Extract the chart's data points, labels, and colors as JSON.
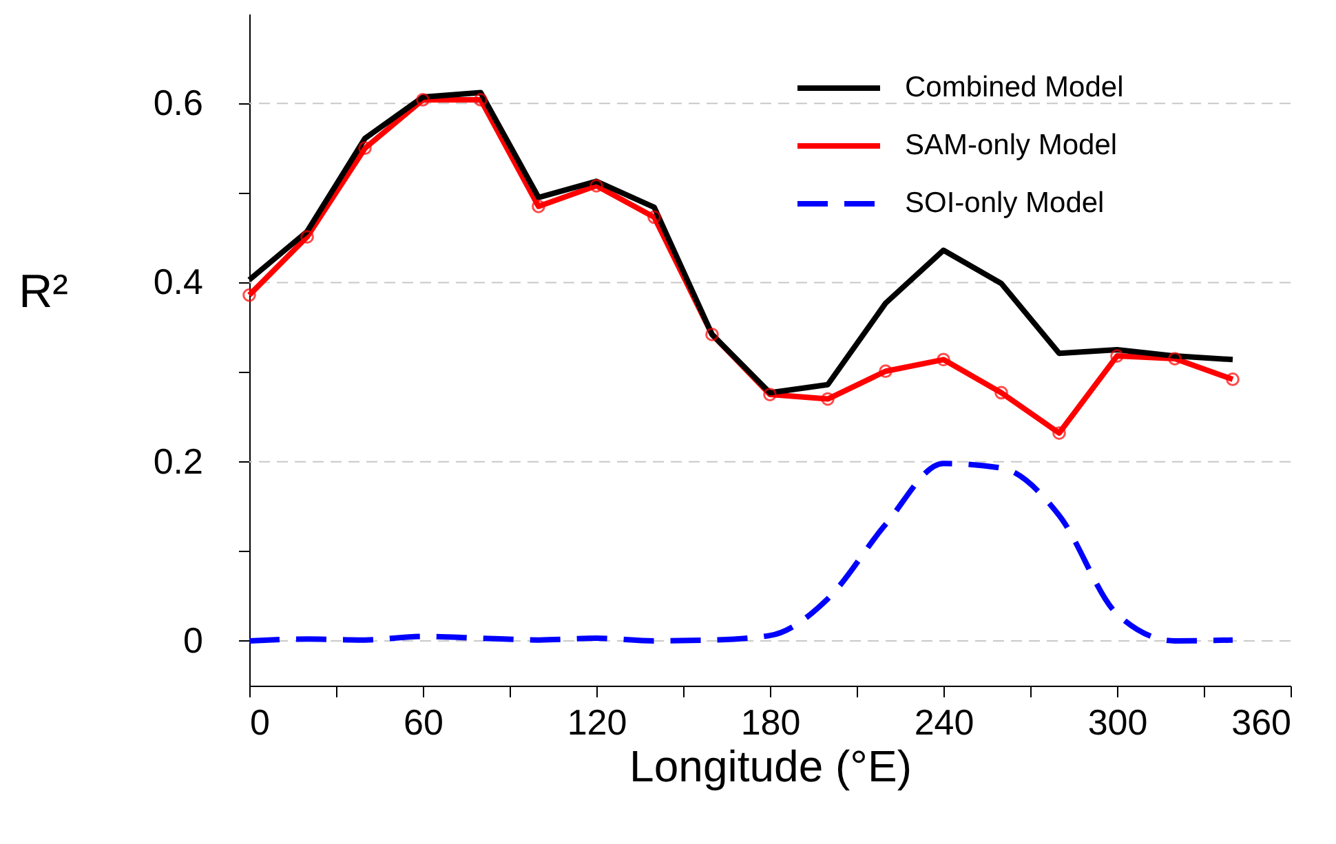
{
  "chart_data": {
    "type": "line",
    "xlabel": "Longitude (°E)",
    "ylabel": "R²",
    "xlim": [
      0,
      360
    ],
    "ylim": [
      -0.05,
      0.7
    ],
    "xticks": [
      0,
      {
        "value": 30,
        "label": null
      },
      60,
      {
        "value": 90,
        "label": null
      },
      120,
      {
        "value": 150,
        "label": null
      },
      180,
      {
        "value": 210,
        "label": null
      },
      240,
      {
        "value": 270,
        "label": null
      },
      300,
      {
        "value": 330,
        "label": null
      },
      360
    ],
    "yticks": [
      0,
      {
        "value": 0.1,
        "label": null
      },
      0.2,
      {
        "value": 0.3,
        "label": null
      },
      0.4,
      {
        "value": 0.5,
        "label": null
      },
      0.6
    ],
    "grid": "y",
    "legend": "top right",
    "x": [
      0,
      20,
      40,
      60,
      80,
      100,
      120,
      140,
      160,
      180,
      200,
      220,
      240,
      260,
      280,
      300,
      320,
      340
    ],
    "series": [
      {
        "name": "Combined Model",
        "color": "#000000",
        "line_style": "solid",
        "marker": "none",
        "values": [
          0.403,
          0.457,
          0.561,
          0.607,
          0.612,
          0.495,
          0.513,
          0.484,
          0.342,
          0.277,
          0.286,
          0.377,
          0.436,
          0.399,
          0.321,
          0.325,
          0.318,
          0.314
        ]
      },
      {
        "name": "SAM-only Model",
        "color": "#ff0000",
        "line_style": "solid",
        "marker": "circle",
        "values": [
          0.386,
          0.451,
          0.55,
          0.604,
          0.604,
          0.485,
          0.508,
          0.473,
          0.342,
          0.275,
          0.27,
          0.301,
          0.314,
          0.277,
          0.232,
          0.318,
          0.315,
          0.292
        ]
      },
      {
        "name": "SOI-only Model",
        "color": "#0000ff",
        "line_style": "dashed",
        "marker": "none",
        "values": [
          0,
          0.002,
          0.001,
          0.005,
          0.003,
          0.001,
          0.003,
          0,
          0.001,
          0.006,
          0.047,
          0.13,
          0.198,
          0.193,
          0.14,
          0.03,
          0,
          0.001
        ]
      }
    ]
  }
}
